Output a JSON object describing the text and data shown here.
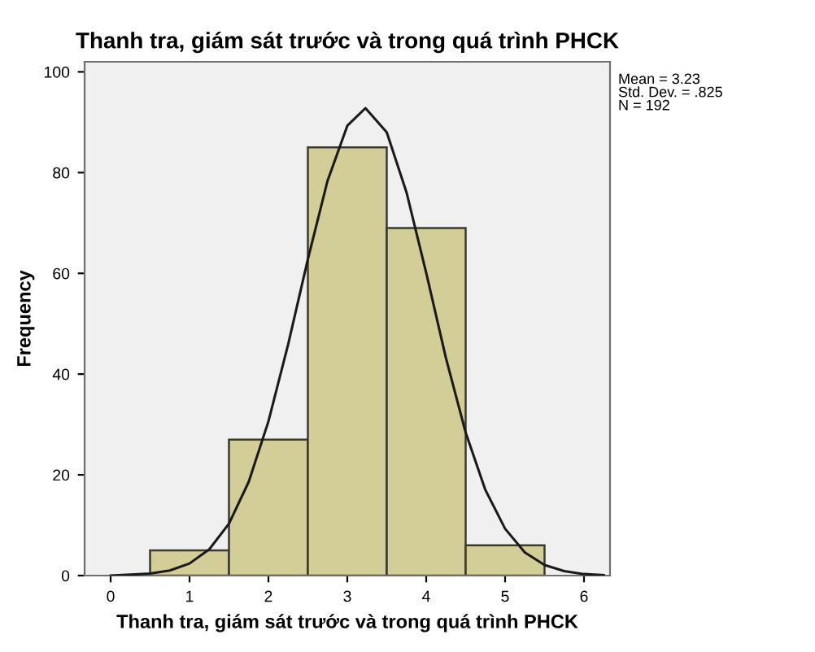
{
  "chart_data": {
    "type": "histogram",
    "title": "Thanh tra, giám sát trước và trong quá trình PHCK",
    "xlabel": "Thanh tra, giám sát trước và trong quá trình PHCK",
    "ylabel": "Frequency",
    "bins": [
      0.5,
      1.5,
      2.5,
      3.5,
      4.5,
      5.5
    ],
    "values": [
      5,
      27,
      85,
      69,
      6
    ],
    "color": "#d3ce98",
    "series": [
      {
        "type": "line",
        "color": "#1a1a1a",
        "x": [
          0,
          0.5,
          0.75,
          1.0,
          1.25,
          1.5,
          1.75,
          2.0,
          2.25,
          2.5,
          2.75,
          3.0,
          3.23,
          3.5,
          3.75,
          4.0,
          4.25,
          4.5,
          4.75,
          5.0,
          5.25,
          5.5,
          5.75,
          6.0,
          6.25
        ],
        "values": [
          0.0,
          0.4,
          1.0,
          2.4,
          5.2,
          10.3,
          18.6,
          30.6,
          45.9,
          62.8,
          78.4,
          89.3,
          92.8,
          88.0,
          76.1,
          60.1,
          43.2,
          28.4,
          17.0,
          9.3,
          4.6,
          2.1,
          0.9,
          0.3,
          0.1
        ]
      }
    ],
    "xlim": [
      -0.33,
      6.33
    ],
    "ylim": [
      0,
      102
    ],
    "xticks": [
      0,
      1,
      2,
      3,
      4,
      5,
      6
    ],
    "yticks": [
      0,
      20,
      40,
      60,
      80,
      100
    ],
    "grid": false,
    "legend": false,
    "annotations": [
      "Mean = 3.23\nStd. Dev. = .825\nN = 192"
    ]
  }
}
